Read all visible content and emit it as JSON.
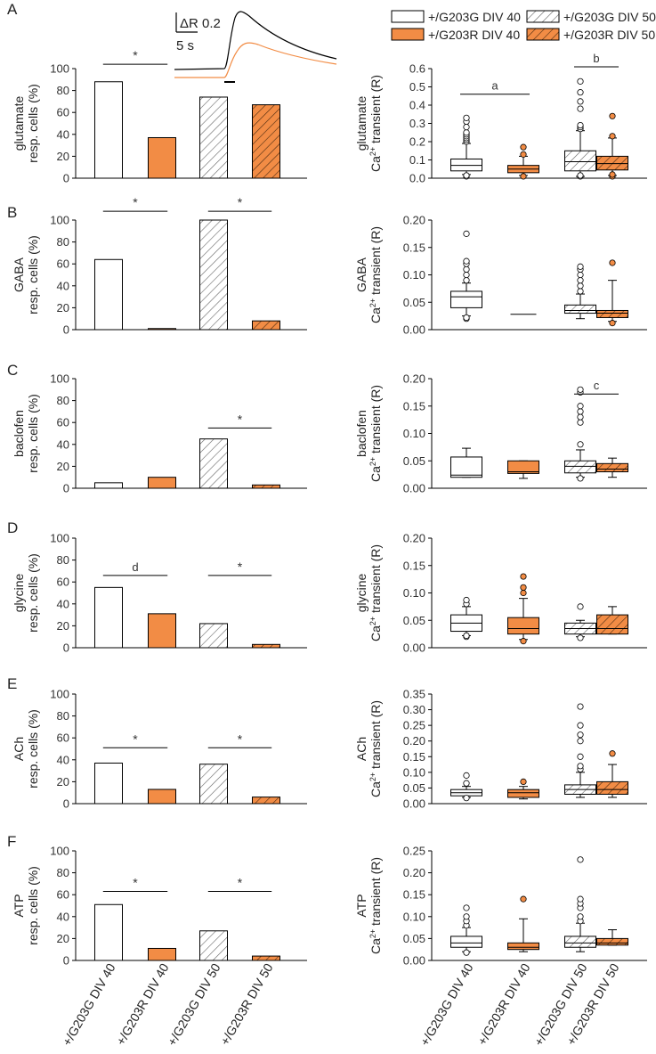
{
  "figure": {
    "colors": {
      "orange": "#F28C45",
      "black": "#000000",
      "hatch": "#555555"
    },
    "groups": [
      "+/G203G DIV 40",
      "+/G203R DIV 40",
      "+/G203G DIV 50",
      "+/G203R DIV 50"
    ],
    "legend": [
      "+/G203G DIV 40",
      "+/G203G DIV 50",
      "+/G203R DIV 40",
      "+/G203R DIV 50"
    ],
    "scalebar": {
      "amplitude": "ΔR 0.2",
      "time": "5 s"
    }
  },
  "chart_data": [
    {
      "panel": "A",
      "type": "bar",
      "ylabel": [
        "glutamate",
        "resp. cells (%)"
      ],
      "categories": [
        "+/G203G DIV 40",
        "+/G203R DIV 40",
        "+/G203G DIV 50",
        "+/G203R DIV 50"
      ],
      "values": [
        88,
        37,
        74,
        67
      ],
      "ylim": [
        0,
        100
      ],
      "yticks": [
        0,
        20,
        40,
        60,
        80,
        100
      ],
      "annotations": [
        {
          "text": "*",
          "from": 0,
          "to": 1,
          "y": 104
        }
      ]
    },
    {
      "panel": "A",
      "type": "box",
      "ylabel": [
        "glutamate",
        "Ca2+ transient (R)"
      ],
      "ylim": [
        0,
        0.6
      ],
      "yticks": [
        0.0,
        0.1,
        0.2,
        0.3,
        0.4,
        0.5,
        0.6
      ],
      "tick_decimals": 1,
      "boxes": [
        {
          "q1": 0.04,
          "median": 0.07,
          "q3": 0.105,
          "wlo": 0.02,
          "whi": 0.19,
          "outliers": [
            0.01,
            0.015,
            0.2,
            0.21,
            0.22,
            0.23,
            0.24,
            0.25,
            0.28,
            0.31,
            0.33
          ]
        },
        {
          "q1": 0.03,
          "median": 0.05,
          "q3": 0.07,
          "wlo": 0.015,
          "whi": 0.12,
          "outliers": [
            0.01,
            0.13,
            0.17
          ]
        },
        {
          "q1": 0.04,
          "median": 0.09,
          "q3": 0.15,
          "wlo": 0.01,
          "whi": 0.26,
          "outliers": [
            0.01,
            0.015,
            0.27,
            0.28,
            0.29,
            0.38,
            0.42,
            0.47,
            0.53
          ]
        },
        {
          "q1": 0.045,
          "median": 0.08,
          "q3": 0.12,
          "wlo": 0.015,
          "whi": 0.22,
          "outliers": [
            0.01,
            0.02,
            0.23,
            0.34
          ]
        }
      ],
      "annotations": [
        {
          "text": "a",
          "from": 0,
          "to": 1,
          "y": 0.46
        },
        {
          "text": "b",
          "from": 2,
          "to": 3,
          "y": 0.61
        }
      ]
    },
    {
      "panel": "B",
      "type": "bar",
      "ylabel": [
        "GABA",
        "resp. cells (%)"
      ],
      "categories": [
        "+/G203G DIV 40",
        "+/G203R DIV 40",
        "+/G203G DIV 50",
        "+/G203R DIV 50"
      ],
      "values": [
        64,
        1,
        100,
        8
      ],
      "ylim": [
        0,
        100
      ],
      "yticks": [
        0,
        20,
        40,
        60,
        80,
        100
      ],
      "annotations": [
        {
          "text": "*",
          "from": 0,
          "to": 1,
          "y": 108
        },
        {
          "text": "*",
          "from": 2,
          "to": 3,
          "y": 108
        }
      ]
    },
    {
      "panel": "B",
      "type": "box",
      "ylabel": [
        "GABA",
        "Ca2+ transient (R)"
      ],
      "ylim": [
        0,
        0.2
      ],
      "yticks": [
        0.0,
        0.05,
        0.1,
        0.15,
        0.2
      ],
      "tick_decimals": 2,
      "boxes": [
        {
          "q1": 0.04,
          "median": 0.06,
          "q3": 0.07,
          "wlo": 0.025,
          "whi": 0.085,
          "outliers": [
            0.02,
            0.022,
            0.09,
            0.1,
            0.11,
            0.12,
            0.125,
            0.175
          ]
        },
        {
          "line": 0.028
        },
        {
          "q1": 0.03,
          "median": 0.035,
          "q3": 0.045,
          "wlo": 0.02,
          "whi": 0.065,
          "outliers": [
            0.07,
            0.08,
            0.09,
            0.1,
            0.11,
            0.115
          ]
        },
        {
          "q1": 0.022,
          "median": 0.03,
          "q3": 0.035,
          "wlo": 0.015,
          "whi": 0.09,
          "outliers": [
            0.012,
            0.122
          ]
        }
      ],
      "annotations": []
    },
    {
      "panel": "C",
      "type": "bar",
      "ylabel": [
        "baclofen",
        "resp. cells (%)"
      ],
      "categories": [
        "+/G203G DIV 40",
        "+/G203R DIV 40",
        "+/G203G DIV 50",
        "+/G203R DIV 50"
      ],
      "values": [
        5,
        10,
        45,
        3
      ],
      "ylim": [
        0,
        100
      ],
      "yticks": [
        0,
        20,
        40,
        60,
        80,
        100
      ],
      "annotations": [
        {
          "text": "*",
          "from": 2,
          "to": 3,
          "y": 55
        }
      ]
    },
    {
      "panel": "C",
      "type": "box",
      "ylabel": [
        "baclofen",
        "Ca2+ transient (R)"
      ],
      "ylim": [
        0,
        0.2
      ],
      "yticks": [
        0.0,
        0.05,
        0.1,
        0.15,
        0.2
      ],
      "tick_decimals": 2,
      "boxes": [
        {
          "q1": 0.02,
          "median": 0.024,
          "q3": 0.057,
          "wlo": 0.02,
          "whi": 0.073,
          "outliers": []
        },
        {
          "q1": 0.027,
          "median": 0.03,
          "q3": 0.05,
          "wlo": 0.018,
          "whi": 0.05,
          "outliers": []
        },
        {
          "q1": 0.028,
          "median": 0.04,
          "q3": 0.05,
          "wlo": 0.02,
          "whi": 0.07,
          "outliers": [
            0.018,
            0.08,
            0.12,
            0.13,
            0.14,
            0.15,
            0.175,
            0.18
          ]
        },
        {
          "q1": 0.03,
          "median": 0.035,
          "q3": 0.045,
          "wlo": 0.02,
          "whi": 0.055,
          "outliers": []
        }
      ],
      "annotations": [
        {
          "text": "c",
          "from": 2,
          "to": 3,
          "y": 0.172
        }
      ]
    },
    {
      "panel": "D",
      "type": "bar",
      "ylabel": [
        "glycine",
        "resp. cells (%)"
      ],
      "categories": [
        "+/G203G DIV 40",
        "+/G203R DIV 40",
        "+/G203G DIV 50",
        "+/G203R DIV 50"
      ],
      "values": [
        55,
        31,
        22,
        3
      ],
      "ylim": [
        0,
        100
      ],
      "yticks": [
        0,
        20,
        40,
        60,
        80,
        100
      ],
      "annotations": [
        {
          "text": "d",
          "from": 0,
          "to": 1,
          "y": 66
        },
        {
          "text": "*",
          "from": 2,
          "to": 3,
          "y": 66
        }
      ]
    },
    {
      "panel": "D",
      "type": "box",
      "ylabel": [
        "glycine",
        "Ca2+ transient (R)"
      ],
      "ylim": [
        0,
        0.2
      ],
      "yticks": [
        0.0,
        0.05,
        0.1,
        0.15,
        0.2
      ],
      "tick_decimals": 2,
      "boxes": [
        {
          "q1": 0.03,
          "median": 0.045,
          "q3": 0.06,
          "wlo": 0.022,
          "whi": 0.075,
          "outliers": [
            0.02,
            0.022,
            0.08,
            0.087
          ]
        },
        {
          "q1": 0.025,
          "median": 0.035,
          "q3": 0.055,
          "wlo": 0.015,
          "whi": 0.09,
          "outliers": [
            0.012,
            0.1,
            0.11,
            0.13
          ]
        },
        {
          "q1": 0.025,
          "median": 0.035,
          "q3": 0.045,
          "wlo": 0.02,
          "whi": 0.05,
          "outliers": [
            0.018,
            0.075
          ]
        },
        {
          "q1": 0.025,
          "median": 0.035,
          "q3": 0.06,
          "wlo": 0.025,
          "whi": 0.075,
          "outliers": []
        }
      ],
      "annotations": []
    },
    {
      "panel": "E",
      "type": "bar",
      "ylabel": [
        "ACh",
        "resp. cells (%)"
      ],
      "categories": [
        "+/G203G DIV 40",
        "+/G203R DIV 40",
        "+/G203G DIV 50",
        "+/G203R DIV 50"
      ],
      "values": [
        37,
        13,
        36,
        6
      ],
      "ylim": [
        0,
        100
      ],
      "yticks": [
        0,
        20,
        40,
        60,
        80,
        100
      ],
      "annotations": [
        {
          "text": "*",
          "from": 0,
          "to": 1,
          "y": 51
        },
        {
          "text": "*",
          "from": 2,
          "to": 3,
          "y": 51
        }
      ]
    },
    {
      "panel": "E",
      "type": "box",
      "ylabel": [
        "ACh",
        "Ca2+ transient (R)"
      ],
      "ylim": [
        0,
        0.35
      ],
      "yticks": [
        0.0,
        0.05,
        0.1,
        0.15,
        0.2,
        0.25,
        0.3,
        0.35
      ],
      "tick_decimals": 2,
      "boxes": [
        {
          "q1": 0.025,
          "median": 0.035,
          "q3": 0.045,
          "wlo": 0.02,
          "whi": 0.055,
          "outliers": [
            0.018,
            0.065,
            0.09
          ]
        },
        {
          "q1": 0.02,
          "median": 0.035,
          "q3": 0.045,
          "wlo": 0.015,
          "whi": 0.055,
          "outliers": [
            0.07
          ]
        },
        {
          "q1": 0.03,
          "median": 0.045,
          "q3": 0.06,
          "wlo": 0.02,
          "whi": 0.1,
          "outliers": [
            0.11,
            0.12,
            0.15,
            0.2,
            0.22,
            0.25,
            0.31
          ]
        },
        {
          "q1": 0.03,
          "median": 0.045,
          "q3": 0.07,
          "wlo": 0.02,
          "whi": 0.125,
          "outliers": [
            0.16
          ]
        }
      ],
      "annotations": []
    },
    {
      "panel": "F",
      "type": "bar",
      "ylabel": [
        "ATP",
        "resp. cells (%)"
      ],
      "categories": [
        "+/G203G DIV 40",
        "+/G203R DIV 40",
        "+/G203G DIV 50",
        "+/G203R DIV 50"
      ],
      "values": [
        51,
        11,
        27,
        4
      ],
      "ylim": [
        0,
        100
      ],
      "yticks": [
        0,
        20,
        40,
        60,
        80,
        100
      ],
      "annotations": [
        {
          "text": "*",
          "from": 0,
          "to": 1,
          "y": 63
        },
        {
          "text": "*",
          "from": 2,
          "to": 3,
          "y": 63
        }
      ]
    },
    {
      "panel": "F",
      "type": "box",
      "ylabel": [
        "ATP",
        "Ca2+ transient (R)"
      ],
      "ylim": [
        0,
        0.25
      ],
      "yticks": [
        0.0,
        0.05,
        0.1,
        0.15,
        0.2,
        0.25
      ],
      "tick_decimals": 2,
      "boxes": [
        {
          "q1": 0.03,
          "median": 0.04,
          "q3": 0.055,
          "wlo": 0.02,
          "whi": 0.075,
          "outliers": [
            0.018,
            0.08,
            0.09,
            0.1,
            0.12
          ]
        },
        {
          "q1": 0.025,
          "median": 0.03,
          "q3": 0.04,
          "wlo": 0.02,
          "whi": 0.095,
          "outliers": [
            0.14
          ]
        },
        {
          "q1": 0.03,
          "median": 0.04,
          "q3": 0.055,
          "wlo": 0.02,
          "whi": 0.085,
          "outliers": [
            0.09,
            0.1,
            0.12,
            0.13,
            0.14,
            0.23
          ]
        },
        {
          "q1": 0.035,
          "median": 0.04,
          "q3": 0.05,
          "wlo": 0.035,
          "whi": 0.07,
          "outliers": []
        }
      ],
      "annotations": []
    }
  ]
}
